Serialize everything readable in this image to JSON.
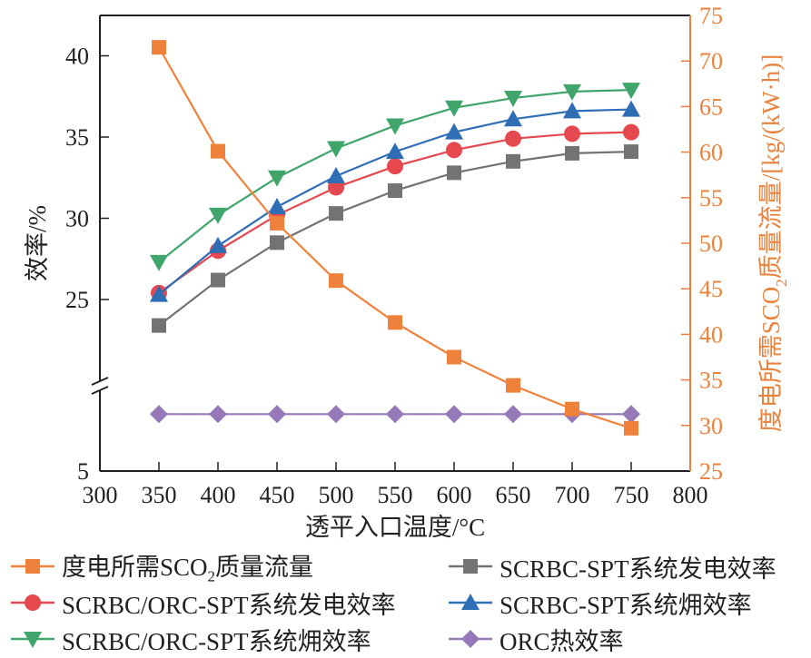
{
  "chart_data": {
    "type": "line",
    "x": [
      350,
      400,
      450,
      500,
      550,
      600,
      650,
      700,
      750
    ],
    "xlabel": "透平入口温度/°C",
    "xlim": [
      300,
      800
    ],
    "xticks": [
      "300",
      "350",
      "400",
      "450",
      "500",
      "550",
      "600",
      "650",
      "700",
      "750",
      "800"
    ],
    "ylabel_left": "效率/%",
    "ylim_left": [
      5,
      42.5
    ],
    "yticks_left": [
      "5",
      "25",
      "30",
      "35",
      "40"
    ],
    "y_axis_break_left": true,
    "ylabel_right_parts": [
      "度电所需SCO",
      "2",
      "质量流量/[kg/(kW·h)]"
    ],
    "ylim_right": [
      25,
      75
    ],
    "yticks_right": [
      "25",
      "30",
      "35",
      "40",
      "45",
      "50",
      "55",
      "60",
      "65",
      "70",
      "75"
    ],
    "grid": false,
    "legend_position": "bottom",
    "series": [
      {
        "key": "sco2",
        "name": "度电所需SCO2质量流量",
        "name_parts": [
          "度电所需SCO",
          "2",
          "质量流量"
        ],
        "axis": "right",
        "marker": "square",
        "color": "#f0813a",
        "values": [
          71.5,
          60.1,
          52.2,
          45.9,
          41.3,
          37.5,
          34.4,
          31.8,
          29.7
        ]
      },
      {
        "key": "scrbc_power",
        "name": "SCRBC-SPT系统发电效率",
        "axis": "left",
        "marker": "square",
        "color": "#737373",
        "values": [
          23.4,
          26.2,
          28.5,
          30.3,
          31.7,
          32.8,
          33.5,
          34.0,
          34.1
        ]
      },
      {
        "key": "orc_power",
        "name": "SCRBC/ORC-SPT系统发电效率",
        "axis": "left",
        "marker": "circle",
        "color": "#e5484f",
        "values": [
          25.4,
          28.0,
          30.2,
          31.9,
          33.2,
          34.2,
          34.9,
          35.2,
          35.3
        ]
      },
      {
        "key": "scrbc_exergy",
        "name": "SCRBC-SPT系统㶲效率",
        "axis": "left",
        "marker": "triangle-up",
        "color": "#2f6db5",
        "values": [
          25.3,
          28.3,
          30.7,
          32.6,
          34.1,
          35.3,
          36.1,
          36.6,
          36.7
        ]
      },
      {
        "key": "orc_exergy",
        "name": "SCRBC/ORC-SPT系统㶲效率",
        "axis": "left",
        "marker": "triangle-down",
        "color": "#3fa56a",
        "values": [
          27.3,
          30.2,
          32.5,
          34.3,
          35.7,
          36.8,
          37.4,
          37.8,
          37.9
        ]
      },
      {
        "key": "orc_thermal",
        "name": "ORC热效率",
        "axis": "left",
        "marker": "diamond",
        "color": "#9579b8",
        "values": [
          10.7,
          10.7,
          10.7,
          10.7,
          10.7,
          10.7,
          10.7,
          10.7,
          10.7
        ]
      }
    ]
  }
}
